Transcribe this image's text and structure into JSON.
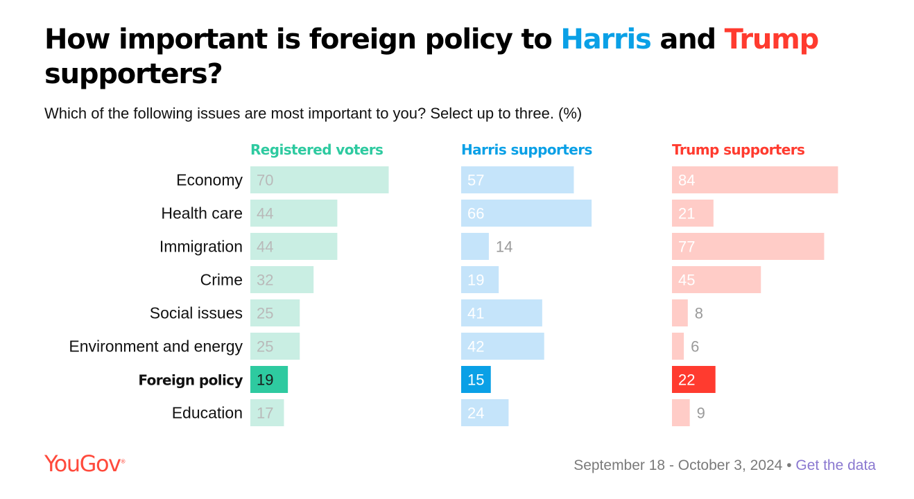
{
  "title": {
    "part1": "How important is foreign policy to ",
    "harris": "Harris",
    "part2": " and ",
    "trump": "Trump",
    "part3": " supporters?"
  },
  "subtitle": "Which of the following issues are most important to you? Select up to three. (%)",
  "colors": {
    "harris": "#0aa0e6",
    "trump": "#ff3b2f",
    "registered": "#2ecaa0"
  },
  "footer": {
    "logo": "YouGov",
    "logo_mark": "®",
    "date_range": "September 18 - October 3, 2024",
    "separator": " • ",
    "link": "Get the data"
  },
  "chart_data": {
    "type": "bar",
    "orientation": "horizontal",
    "unit": "%",
    "categories": [
      "Economy",
      "Health care",
      "Immigration",
      "Crime",
      "Social issues",
      "Environment and energy",
      "Foreign policy",
      "Education"
    ],
    "highlighted_category": "Foreign policy",
    "series": [
      {
        "name": "Registered voters",
        "color": "#2ecaa0",
        "light_color": "#c9eee3",
        "values": [
          70,
          44,
          44,
          32,
          25,
          25,
          19,
          17
        ]
      },
      {
        "name": "Harris supporters",
        "color": "#0aa0e6",
        "light_color": "#c5e4fa",
        "values": [
          57,
          66,
          14,
          19,
          41,
          42,
          15,
          24
        ]
      },
      {
        "name": "Trump supporters",
        "color": "#ff3b2f",
        "light_color": "#ffccc7",
        "values": [
          84,
          21,
          77,
          45,
          8,
          6,
          22,
          9
        ]
      }
    ]
  }
}
